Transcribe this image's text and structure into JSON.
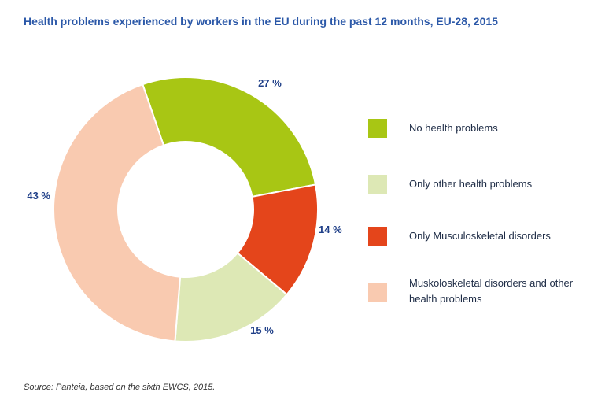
{
  "title": "Health problems experienced by workers in the EU during the past 12 months, EU-28, 2015",
  "source": "Source: Panteia, based on the sixth EWCS, 2015.",
  "chart_data": {
    "type": "pie",
    "variant": "donut",
    "title": "Health problems experienced by workers in the EU during the past 12 months, EU-28, 2015",
    "unit": "%",
    "legend_position": "right",
    "slices": [
      {
        "label": "No health problems",
        "value": 27,
        "display": "27 %",
        "color": "#a8c614"
      },
      {
        "label": "Only other health problems",
        "value": 15,
        "display": "15 %",
        "color": "#dde8b5"
      },
      {
        "label": "Only Musculoskeletal disorders",
        "value": 14,
        "display": "14 %",
        "color": "#e4451b"
      },
      {
        "label": "Muskoloskeletal disorders and other health problems",
        "value": 43,
        "display": "43 %",
        "color": "#f9cab0"
      }
    ],
    "draw_order": [
      0,
      2,
      1,
      3
    ],
    "legend": [
      "No health problems",
      "Only other health problems",
      "Only Musculoskeletal disorders",
      "Muskoloskeletal disorders and other health problems"
    ]
  }
}
